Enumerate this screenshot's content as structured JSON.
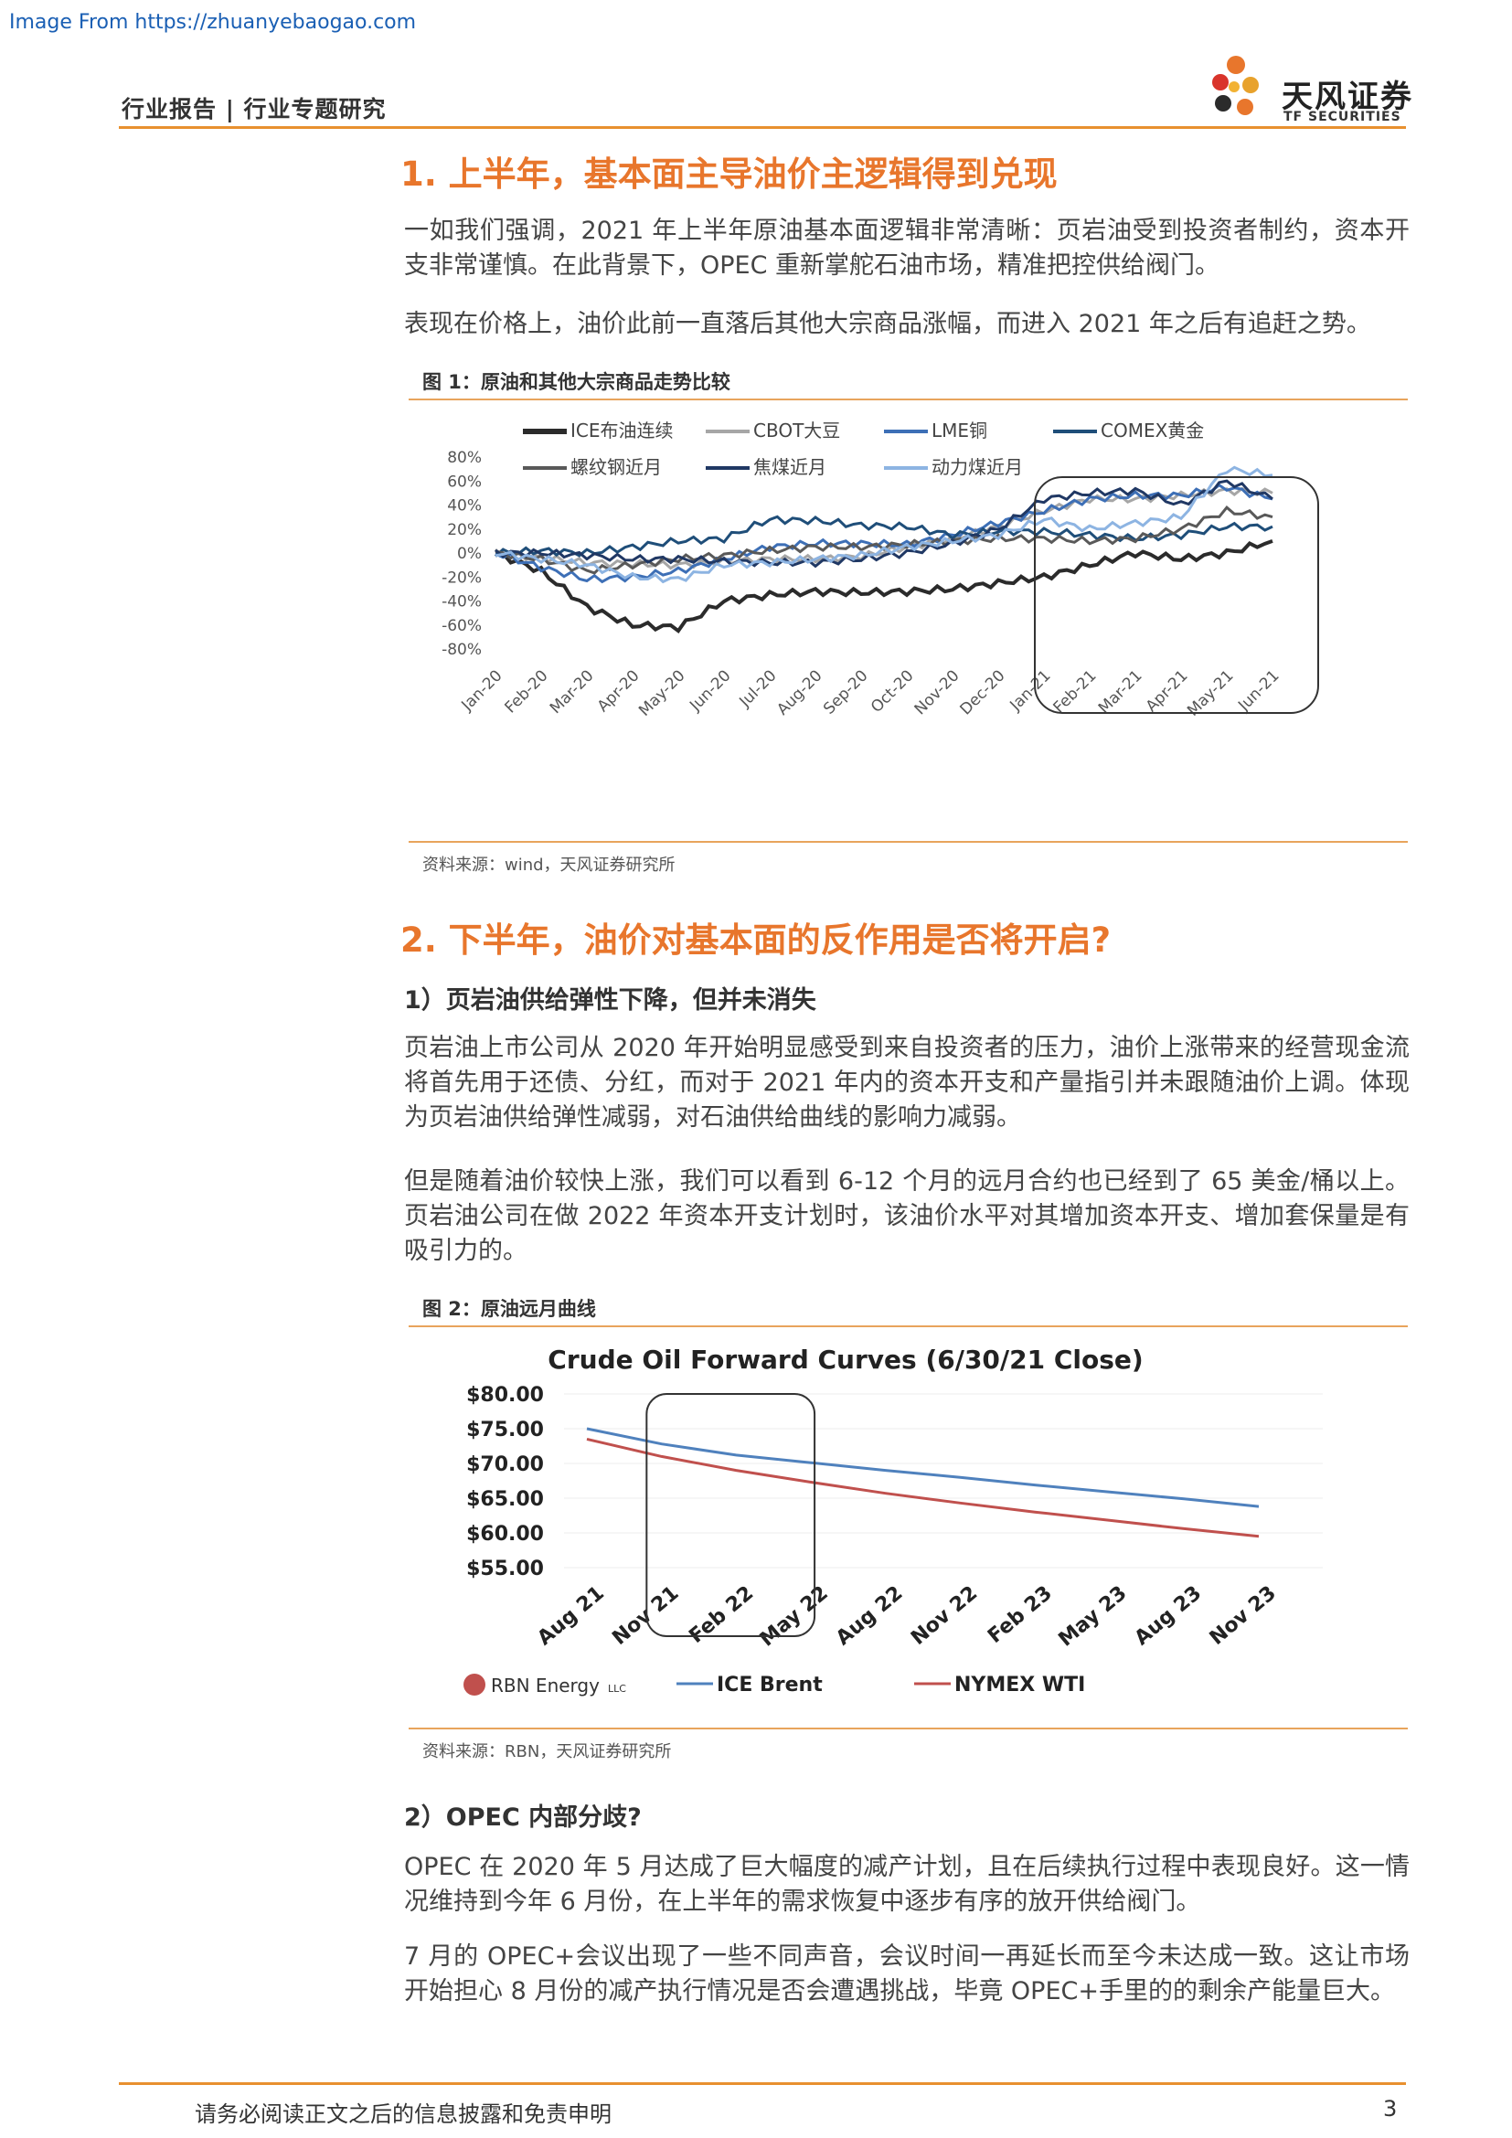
{
  "watermark": "Image From https://zhuanyebaogao.com",
  "header": {
    "breadcrumb": "行业报告 | 行业专题研究",
    "logo_cn": "天风证券",
    "logo_en": "TF SECURITIES"
  },
  "sections": {
    "s1_title": "1. 上半年，基本面主导油价主逻辑得到兑现",
    "s1_p1": "一如我们强调，2021 年上半年原油基本面逻辑非常清晰：页岩油受到投资者制约，资本开支非常谨慎。在此背景下，OPEC 重新掌舵石油市场，精准把控供给阀门。",
    "s1_p2": "表现在价格上，油价此前一直落后其他大宗商品涨幅，而进入 2021 年之后有追赶之势。",
    "s2_title": "2. 下半年，油价对基本面的反作用是否将开启?",
    "s2_sub1": "1）页岩油供给弹性下降，但并未消失",
    "s2_p1": "页岩油上市公司从 2020 年开始明显感受到来自投资者的压力，油价上涨带来的经营现金流将首先用于还债、分红，而对于 2021 年内的资本开支和产量指引并未跟随油价上调。体现为页岩油供给弹性减弱，对石油供给曲线的影响力减弱。",
    "s2_p2": "但是随着油价较快上涨，我们可以看到 6-12 个月的远月合约也已经到了 65 美金/桶以上。页岩油公司在做 2022 年资本开支计划时，该油价水平对其增加资本开支、增加套保量是有吸引力的。",
    "s2_sub2": "2）OPEC 内部分歧?",
    "s2_p3": "OPEC 在 2020 年 5 月达成了巨大幅度的减产计划，且在后续执行过程中表现良好。这一情况维持到今年 6 月份，在上半年的需求恢复中逐步有序的放开供给阀门。",
    "s2_p4": "7 月的 OPEC+会议出现了一些不同声音，会议时间一再延长而至今未达成一致。这让市场开始担心 8 月份的减产执行情况是否会遭遇挑战，毕竟 OPEC+手里的的剩余产能量巨大。"
  },
  "figure1": {
    "caption": "图 1：原油和其他大宗商品走势比较",
    "source": "资料来源：wind，天风证券研究所"
  },
  "figure2": {
    "caption": "图 2：原油远月曲线",
    "source": "资料来源：RBN，天风证券研究所",
    "brand": "RBN Energy",
    "brand_suffix": "LLC"
  },
  "footer": {
    "disclaimer": "请务必阅读正文之后的信息披露和免责申明",
    "page": "3"
  },
  "chart_data": [
    {
      "type": "line",
      "categories": [
        "Jan-20",
        "Feb-20",
        "Mar-20",
        "Apr-20",
        "May-20",
        "Jun-20",
        "Jul-20",
        "Aug-20",
        "Sep-20",
        "Oct-20",
        "Nov-20",
        "Dec-20",
        "Jan-21",
        "Feb-21",
        "Mar-21",
        "Apr-21",
        "May-21",
        "Jun-21"
      ],
      "y_tick_labels": [
        "80%",
        "60%",
        "40%",
        "20%",
        "0%",
        "-20%",
        "-40%",
        "-60%",
        "-80%"
      ],
      "ylim": [
        -80,
        80
      ],
      "legend_position": "top",
      "series": [
        {
          "name": "ICE布油连续",
          "color": "#2b2b2b",
          "values": [
            0,
            -15,
            -45,
            -60,
            -62,
            -40,
            -35,
            -32,
            -33,
            -32,
            -30,
            -25,
            -20,
            -10,
            0,
            -5,
            0,
            10
          ]
        },
        {
          "name": "CBOT大豆",
          "color": "#a6a6a6",
          "values": [
            0,
            -4,
            -8,
            -9,
            -10,
            -7,
            -5,
            -5,
            -3,
            5,
            12,
            22,
            35,
            45,
            45,
            48,
            52,
            50
          ]
        },
        {
          "name": "LME铜",
          "color": "#3d6fb6",
          "values": [
            0,
            -12,
            -22,
            -20,
            -15,
            -5,
            5,
            8,
            8,
            7,
            15,
            25,
            35,
            45,
            48,
            48,
            55,
            45
          ]
        },
        {
          "name": "COMEX黄金",
          "color": "#1f4e79",
          "values": [
            0,
            2,
            0,
            5,
            10,
            12,
            28,
            27,
            23,
            22,
            15,
            18,
            18,
            15,
            12,
            15,
            22,
            22
          ]
        },
        {
          "name": "螺纹钢近月",
          "color": "#595959",
          "values": [
            0,
            -5,
            -15,
            -10,
            -5,
            -2,
            2,
            5,
            5,
            7,
            10,
            12,
            12,
            10,
            12,
            20,
            35,
            30
          ]
        },
        {
          "name": "焦煤近月",
          "color": "#203864",
          "values": [
            0,
            0,
            -2,
            -5,
            -5,
            -7,
            -8,
            -8,
            -5,
            0,
            8,
            20,
            45,
            50,
            52,
            40,
            60,
            45
          ]
        },
        {
          "name": "动力煤近月",
          "color": "#8db4e2",
          "values": [
            0,
            -5,
            -10,
            -20,
            -22,
            -10,
            -8,
            -5,
            -2,
            5,
            10,
            15,
            28,
            20,
            25,
            30,
            70,
            65
          ]
        }
      ]
    },
    {
      "type": "line",
      "title": "Crude Oil Forward Curves (6/30/21 Close)",
      "categories": [
        "Aug 21",
        "Nov 21",
        "Feb 22",
        "May 22",
        "Aug 22",
        "Nov 22",
        "Feb 23",
        "May 23",
        "Aug 23",
        "Nov 23"
      ],
      "y_tick_labels": [
        "$80.00",
        "$75.00",
        "$70.00",
        "$65.00",
        "$60.00",
        "$55.00"
      ],
      "ylim": [
        55,
        80
      ],
      "legend_position": "bottom",
      "series": [
        {
          "name": "ICE Brent",
          "color": "#4f81bd",
          "values": [
            75.0,
            72.8,
            71.2,
            70.1,
            69.0,
            68.0,
            66.9,
            65.9,
            64.9,
            63.8
          ]
        },
        {
          "name": "NYMEX WTI",
          "color": "#c0504d",
          "values": [
            73.5,
            71.0,
            69.0,
            67.3,
            65.7,
            64.3,
            63.0,
            61.8,
            60.6,
            59.5
          ]
        }
      ]
    }
  ]
}
